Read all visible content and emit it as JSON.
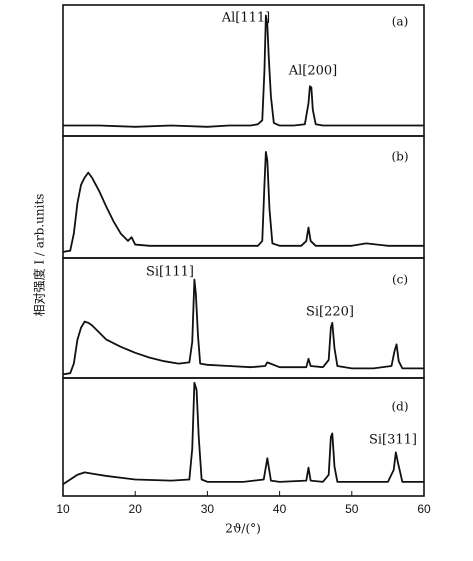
{
  "chart_data": [
    {
      "type": "line",
      "label": "(a)",
      "annotations": [
        "Al[111]",
        "Al[200]"
      ],
      "color": "#111111",
      "xlim": [
        10,
        60
      ],
      "ylim": [
        0,
        100
      ],
      "x": [
        10,
        12,
        15,
        20,
        25,
        30,
        33,
        36,
        37,
        37.6,
        37.9,
        38.1,
        38.3,
        38.5,
        38.8,
        39.2,
        40,
        42,
        43.5,
        44,
        44.2,
        44.4,
        44.6,
        45,
        46,
        50,
        55,
        60
      ],
      "values": [
        8,
        8,
        8,
        7,
        8,
        7,
        8,
        8,
        9,
        12,
        50,
        92,
        85,
        60,
        30,
        10,
        8,
        8,
        9,
        25,
        38,
        37,
        20,
        9,
        8,
        8,
        8,
        8
      ],
      "ylabel": "相对强度 I / arb.units"
    },
    {
      "type": "line",
      "label": "(b)",
      "color": "#111111",
      "xlim": [
        10,
        60
      ],
      "ylim": [
        0,
        100
      ],
      "x": [
        10,
        11,
        11.5,
        12,
        12.5,
        13,
        13.5,
        14,
        15,
        16,
        17,
        18,
        19,
        19.5,
        20,
        22,
        25,
        30,
        35,
        37,
        37.6,
        37.9,
        38.1,
        38.3,
        38.6,
        39,
        40,
        43,
        43.7,
        44,
        44.3,
        45,
        50,
        52,
        55,
        60
      ],
      "values": [
        5,
        6,
        20,
        45,
        60,
        66,
        70,
        66,
        55,
        42,
        30,
        20,
        14,
        17,
        11,
        10,
        10,
        10,
        10,
        10,
        14,
        60,
        87,
        80,
        40,
        12,
        10,
        10,
        14,
        25,
        14,
        10,
        10,
        12,
        10,
        10
      ]
    },
    {
      "type": "line",
      "label": "(c)",
      "annotations": [
        "Si[111]",
        "Si[220]"
      ],
      "color": "#111111",
      "xlim": [
        10,
        60
      ],
      "ylim": [
        0,
        100
      ],
      "x": [
        10,
        11,
        11.5,
        12,
        12.5,
        13,
        13.5,
        14,
        15,
        16,
        18,
        20,
        22,
        24,
        26,
        27.5,
        27.9,
        28.2,
        28.4,
        28.7,
        29,
        30,
        33,
        36,
        38,
        38.3,
        40,
        43.7,
        44,
        44.3,
        46,
        46.8,
        47.1,
        47.3,
        47.6,
        48,
        50,
        53,
        55.5,
        55.9,
        56.2,
        56.5,
        57,
        60
      ],
      "values": [
        3,
        4,
        12,
        32,
        42,
        47,
        46,
        44,
        38,
        32,
        26,
        21,
        17,
        14,
        12,
        13,
        30,
        82,
        70,
        35,
        12,
        11,
        10,
        9,
        10,
        13,
        9,
        9,
        16,
        10,
        9,
        15,
        42,
        46,
        25,
        10,
        8,
        8,
        10,
        22,
        28,
        14,
        8,
        8
      ]
    },
    {
      "type": "line",
      "label": "(d)",
      "annotations": [
        "Si[311]"
      ],
      "color": "#111111",
      "xlim": [
        10,
        60
      ],
      "ylim": [
        0,
        100
      ],
      "x": [
        10,
        11,
        12,
        13,
        14,
        16,
        20,
        25,
        27.5,
        27.9,
        28.2,
        28.5,
        28.8,
        29.2,
        30,
        35,
        37.8,
        38.3,
        38.8,
        40,
        43.7,
        44,
        44.3,
        46,
        46.8,
        47.1,
        47.3,
        47.6,
        48,
        50,
        55,
        55.8,
        56.1,
        56.4,
        57,
        60
      ],
      "values": [
        10,
        14,
        18,
        20,
        19,
        17,
        14,
        13,
        14,
        40,
        96,
        90,
        50,
        14,
        12,
        12,
        14,
        32,
        13,
        12,
        13,
        24,
        13,
        12,
        18,
        50,
        53,
        25,
        12,
        12,
        12,
        22,
        37,
        28,
        12,
        12
      ],
      "xticks": [
        10,
        20,
        30,
        40,
        50,
        60
      ],
      "xlabel": "2ϑ/(°)"
    }
  ]
}
